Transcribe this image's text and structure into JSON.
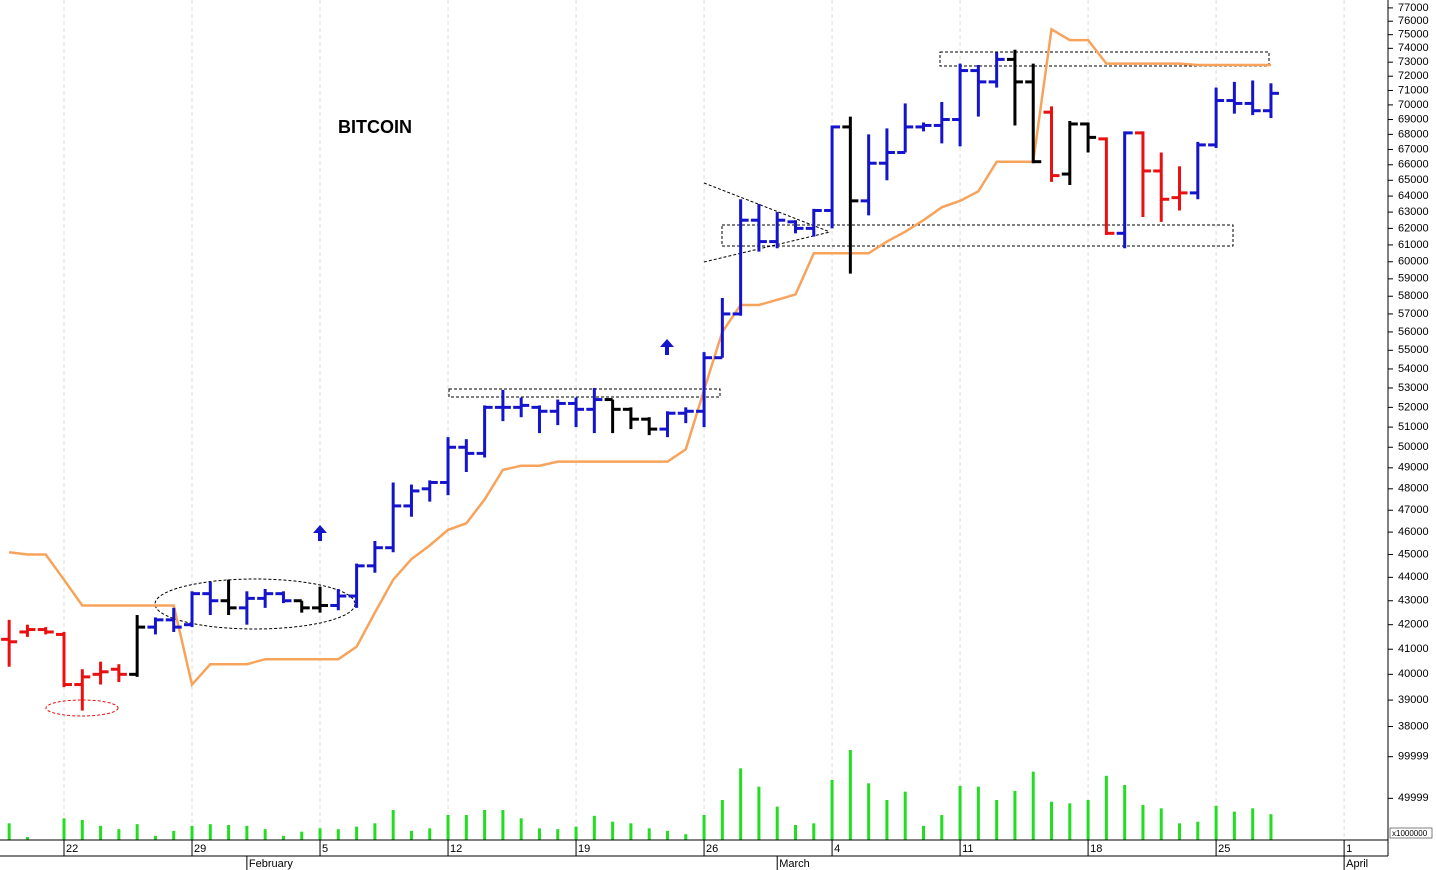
{
  "chart_data": {
    "type": "ohlc",
    "title": "BITCOIN",
    "log_scale": true,
    "grid": true,
    "x": [
      -3,
      -2,
      -1,
      0,
      1,
      2,
      3,
      4,
      5,
      6,
      7,
      8,
      9,
      10,
      11,
      12,
      13,
      14,
      15,
      16,
      17,
      18,
      19,
      20,
      21,
      22,
      23,
      24,
      25,
      26,
      27,
      28,
      29,
      30,
      31,
      32,
      33,
      34,
      35,
      36,
      37,
      38,
      39,
      40,
      41,
      42,
      43,
      44,
      45,
      46,
      47,
      48,
      49,
      50,
      51,
      52,
      53,
      54,
      55,
      56,
      57,
      58,
      59,
      60,
      61,
      62,
      63,
      64,
      65,
      66
    ],
    "open": [
      41400,
      41700,
      41800,
      41600,
      39600,
      40000,
      40200,
      40000,
      41900,
      42200,
      42000,
      43300,
      43000,
      42700,
      43100,
      43300,
      43000,
      42700,
      42800,
      43200,
      44500,
      45300,
      47200,
      48000,
      48300,
      50000,
      49700,
      52000,
      52000,
      52000,
      51800,
      52200,
      51900,
      52400,
      51900,
      51400,
      50900,
      51700,
      51800,
      54600,
      57000,
      62500,
      61200,
      62400,
      62000,
      63100,
      68500,
      63700,
      66100,
      66800,
      68500,
      68600,
      69000,
      72400,
      71600,
      73200,
      71600,
      69500,
      65400,
      68700,
      67700,
      61700,
      68100,
      65600,
      63900,
      64200,
      67300,
      70300,
      70100,
      69600
    ],
    "high": [
      42200,
      42000,
      41900,
      41700,
      40200,
      40500,
      40400,
      42400,
      42300,
      42700,
      43400,
      43800,
      43900,
      43400,
      43500,
      43400,
      43000,
      43600,
      43500,
      44600,
      45600,
      48300,
      48200,
      48400,
      50500,
      50400,
      52100,
      52900,
      52500,
      52100,
      52400,
      52500,
      53000,
      52400,
      52000,
      51500,
      51800,
      52000,
      54900,
      57900,
      63800,
      63500,
      63000,
      62500,
      63200,
      68600,
      69200,
      68000,
      68400,
      70100,
      68800,
      70200,
      72900,
      72800,
      73700,
      73900,
      72900,
      69900,
      68900,
      68800,
      67800,
      68200,
      68200,
      66800,
      65900,
      67500,
      71200,
      71600,
      71700,
      71500
    ],
    "low": [
      40300,
      41500,
      41600,
      39500,
      38600,
      39600,
      39700,
      39900,
      41600,
      41700,
      41900,
      42400,
      42400,
      42000,
      42700,
      42900,
      42500,
      42500,
      42600,
      42700,
      44200,
      45100,
      46700,
      47400,
      47700,
      48800,
      49500,
      51300,
      51500,
      50700,
      51100,
      51000,
      50700,
      50700,
      50900,
      50600,
      50500,
      51200,
      51000,
      54600,
      56900,
      60600,
      60800,
      61700,
      61500,
      62000,
      59300,
      62800,
      65000,
      66800,
      68200,
      67400,
      67200,
      69200,
      71200,
      68600,
      66100,
      64900,
      64700,
      66800,
      61600,
      60800,
      62700,
      62400,
      63100,
      63800,
      67100,
      69400,
      69300,
      69100
    ],
    "close": [
      41300,
      41800,
      41700,
      39600,
      39900,
      40100,
      40000,
      41900,
      42200,
      41900,
      43300,
      43000,
      42700,
      43100,
      43300,
      43000,
      42700,
      42800,
      43200,
      44500,
      45300,
      47200,
      47900,
      48300,
      50000,
      49700,
      52000,
      52000,
      52100,
      51800,
      52200,
      51900,
      52400,
      51900,
      51400,
      50900,
      51700,
      51800,
      54600,
      57000,
      62500,
      61200,
      62500,
      62000,
      63100,
      68500,
      63700,
      66100,
      66800,
      68500,
      68600,
      69000,
      72400,
      71600,
      73200,
      71600,
      66200,
      65300,
      68700,
      67800,
      61700,
      68100,
      65600,
      63800,
      64200,
      67300,
      70300,
      70100,
      69600,
      70800
    ],
    "bar_colors": [
      "#e81010",
      "#e81010",
      "#e81010",
      "#e81010",
      "#e81010",
      "#e81010",
      "#e81010",
      "#000000",
      "#1414cc",
      "#1414cc",
      "#1414cc",
      "#1414cc",
      "#000000",
      "#1414cc",
      "#1414cc",
      "#1414cc",
      "#000000",
      "#000000",
      "#1414cc",
      "#1414cc",
      "#1414cc",
      "#1414cc",
      "#1414cc",
      "#1414cc",
      "#1414cc",
      "#1414cc",
      "#1414cc",
      "#1414cc",
      "#1414cc",
      "#1414cc",
      "#1414cc",
      "#1414cc",
      "#1414cc",
      "#000000",
      "#000000",
      "#000000",
      "#1414cc",
      "#1414cc",
      "#1414cc",
      "#1414cc",
      "#1414cc",
      "#1414cc",
      "#1414cc",
      "#1414cc",
      "#1414cc",
      "#1414cc",
      "#000000",
      "#1414cc",
      "#1414cc",
      "#1414cc",
      "#1414cc",
      "#1414cc",
      "#1414cc",
      "#1414cc",
      "#1414cc",
      "#000000",
      "#000000",
      "#e81010",
      "#000000",
      "#000000",
      "#e81010",
      "#1414cc",
      "#e81010",
      "#e81010",
      "#e81010",
      "#1414cc",
      "#1414cc",
      "#1414cc",
      "#1414cc",
      "#1414cc"
    ],
    "series": [
      {
        "color": "#f7a35c",
        "values": [
          45100,
          45000,
          45000,
          43900,
          42800,
          42800,
          42800,
          42800,
          42800,
          42800,
          39600,
          40400,
          40400,
          40400,
          40600,
          40600,
          40600,
          40600,
          40600,
          41100,
          42500,
          43900,
          44800,
          45400,
          46100,
          46400,
          47500,
          48900,
          49100,
          49100,
          49300,
          49300,
          49300,
          49300,
          49300,
          49300,
          49300,
          49900,
          52900,
          56000,
          57500,
          57500,
          57800,
          58100,
          60500,
          60500,
          60500,
          60500,
          61200,
          61800,
          62500,
          63300,
          63700,
          64300,
          66200,
          66200,
          66200,
          75400,
          74600,
          74600,
          72900,
          72900,
          72900,
          72900,
          72900,
          72800,
          72800,
          72800,
          72800,
          72800
        ]
      }
    ],
    "ylim": [
      37500,
      77600
    ],
    "yticks": [
      38000,
      39000,
      40000,
      41000,
      42000,
      43000,
      44000,
      45000,
      46000,
      47000,
      48000,
      49000,
      50000,
      51000,
      52000,
      53000,
      54000,
      55000,
      56000,
      57000,
      58000,
      59000,
      60000,
      61000,
      62000,
      63000,
      64000,
      65000,
      66000,
      67000,
      68000,
      69000,
      70000,
      71000,
      72000,
      73000,
      74000,
      75000,
      76000,
      77000
    ],
    "xlim": [
      -3.5,
      72.4
    ],
    "xticks": [
      {
        "value": 0,
        "label": "22"
      },
      {
        "value": 7,
        "label": "29"
      },
      {
        "value": 14,
        "label": "5"
      },
      {
        "value": 21,
        "label": "12"
      },
      {
        "value": 28,
        "label": "19"
      },
      {
        "value": 35,
        "label": "26"
      },
      {
        "value": 42,
        "label": "4"
      },
      {
        "value": 49,
        "label": "11"
      },
      {
        "value": 56,
        "label": "18"
      },
      {
        "value": 63,
        "label": "25"
      },
      {
        "value": 70,
        "label": "1"
      }
    ],
    "month_ticks": [
      {
        "value": 10,
        "label": "February"
      },
      {
        "value": 39,
        "label": "March"
      },
      {
        "value": 70,
        "label": "April"
      }
    ],
    "volume": {
      "color": "#22dd22",
      "unit_label": "x1000000",
      "ylim": [
        0,
        120000
      ],
      "yticks": [
        49999,
        99999
      ],
      "values": [
        20000,
        3600,
        0,
        26000,
        24000,
        17000,
        13000,
        19000,
        5000,
        11000,
        17000,
        19000,
        18000,
        17000,
        13000,
        5000,
        10000,
        14000,
        13000,
        16000,
        20000,
        36000,
        11000,
        14000,
        30000,
        30000,
        36000,
        36000,
        26000,
        14000,
        13000,
        16000,
        29000,
        22000,
        20000,
        14000,
        11000,
        7000,
        30000,
        48000,
        86000,
        64000,
        40000,
        18000,
        20000,
        72000,
        108000,
        68000,
        48000,
        58000,
        17000,
        30000,
        65000,
        64000,
        48000,
        59000,
        82000,
        46000,
        44000,
        48000,
        77000,
        66000,
        42000,
        38000,
        20000,
        22000,
        41000,
        34000,
        38000,
        31000
      ]
    }
  }
}
